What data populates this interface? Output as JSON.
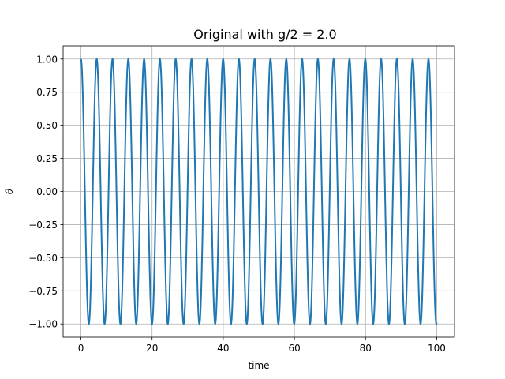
{
  "chart_data": {
    "type": "line",
    "title": "Original with g/2 = 2.0",
    "xlabel": "time",
    "ylabel": "θ",
    "xlim": [
      -5,
      105
    ],
    "ylim": [
      -1.1,
      1.1
    ],
    "x_ticks": [
      0,
      20,
      40,
      60,
      80,
      100
    ],
    "x_tick_labels": [
      "0",
      "20",
      "40",
      "60",
      "80",
      "100"
    ],
    "y_ticks": [
      -1.0,
      -0.75,
      -0.5,
      -0.25,
      0.0,
      0.25,
      0.5,
      0.75,
      1.0
    ],
    "y_tick_labels": [
      "−1.00",
      "−0.75",
      "−0.50",
      "−0.25",
      "0.00",
      "0.25",
      "0.50",
      "0.75",
      "1.00"
    ],
    "grid": true,
    "series": [
      {
        "function": "cos(2π·time/4.44)",
        "amplitude": 1.0,
        "period": 4.44,
        "x_start": 0,
        "x_end": 100,
        "color": "#1f77b4"
      }
    ]
  }
}
